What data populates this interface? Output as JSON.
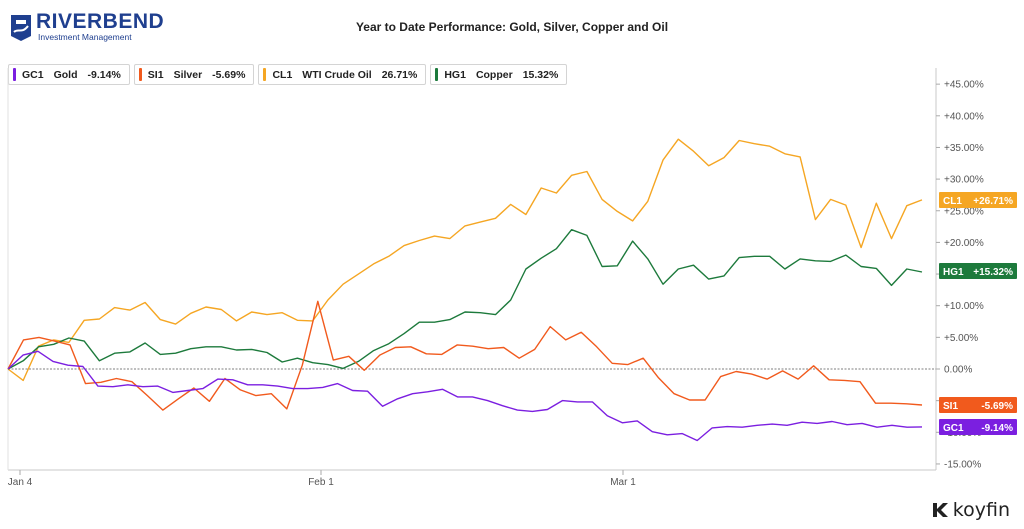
{
  "logo": {
    "word": "RIVERBEND",
    "sub": "Investment Management"
  },
  "brand": {
    "name": "koyfin"
  },
  "chart_data": {
    "type": "line",
    "title": "Year to Date Performance: Gold, Silver, Copper and Oil",
    "xlabel": "",
    "ylabel": "",
    "x_ticks": [
      "Jan 4",
      "Feb 1",
      "Mar 1"
    ],
    "ylim": [
      -15,
      47
    ],
    "y_ticks": [
      "+45.00%",
      "+40.00%",
      "+35.00%",
      "+30.00%",
      "+25.00%",
      "+20.00%",
      "+15.00%",
      "+10.00%",
      "+5.00%",
      "0.00%",
      "-5.00%",
      "-10.00%",
      "-15.00%"
    ],
    "y_tick_values": [
      45,
      40,
      35,
      30,
      25,
      20,
      15,
      10,
      5,
      0,
      -5,
      -10,
      -15
    ],
    "grid": false,
    "zero_line": true,
    "legend_position": "top-left",
    "series": [
      {
        "ticker": "GC1",
        "name": "Gold",
        "change": "-9.14%",
        "end_label": "-9.14%",
        "color": "#7b1fe0",
        "values": [
          0,
          2.2,
          2.8,
          1.2,
          0.6,
          0.4,
          -2.7,
          -2.8,
          -2.5,
          -2.8,
          -2.7,
          -3.7,
          -3.4,
          -3.1,
          -1.6,
          -1.7,
          -2.5,
          -2.5,
          -2.7,
          -3.1,
          -3.1,
          -2.9,
          -2.3,
          -3.4,
          -3.5,
          -5.9,
          -4.7,
          -3.9,
          -3.6,
          -3.2,
          -4.4,
          -4.4,
          -5.0,
          -5.8,
          -6.5,
          -6.7,
          -6.4,
          -5.0,
          -5.2,
          -5.2,
          -7.4,
          -8.5,
          -8.2,
          -9.9,
          -10.4,
          -10.2,
          -11.3,
          -9.3,
          -9.1,
          -9.2,
          -8.9,
          -8.7,
          -8.9,
          -8.4,
          -8.6,
          -8.3,
          -8.8,
          -8.6,
          -9.2,
          -8.9,
          -9.2,
          -9.14
        ]
      },
      {
        "ticker": "SI1",
        "name": "Silver",
        "change": "-5.69%",
        "end_label": "-5.69%",
        "color": "#f15a1d",
        "values": [
          0,
          4.6,
          5.0,
          4.4,
          3.8,
          -2.3,
          -2.1,
          -1.5,
          -2.0,
          -4.2,
          -6.5,
          -4.7,
          -3.0,
          -5.1,
          -1.5,
          -3.3,
          -4.2,
          -3.9,
          -6.3,
          0.6,
          10.7,
          1.4,
          2.0,
          -0.2,
          2.2,
          3.4,
          3.5,
          2.4,
          2.3,
          3.8,
          3.6,
          3.2,
          3.4,
          1.7,
          3.1,
          6.7,
          4.6,
          5.8,
          3.5,
          0.9,
          0.7,
          1.7,
          -1.4,
          -3.9,
          -4.9,
          -4.9,
          -1.2,
          -0.4,
          -0.8,
          -1.6,
          -0.3,
          -1.6,
          0.5,
          -1.7,
          -1.8,
          -2.0,
          -5.4,
          -5.4,
          -5.5,
          -5.69
        ]
      },
      {
        "ticker": "CL1",
        "name": "WTI Crude Oil",
        "change": "26.71%",
        "end_label": "+26.71%",
        "color": "#f5a623",
        "values": [
          0,
          -1.8,
          3.6,
          4.6,
          4.2,
          7.7,
          7.9,
          9.7,
          9.3,
          10.5,
          7.8,
          7.1,
          8.8,
          9.8,
          9.4,
          7.6,
          9.0,
          8.6,
          8.9,
          7.7,
          7.6,
          10.9,
          13.4,
          15.0,
          16.6,
          17.8,
          19.5,
          20.3,
          21.0,
          20.6,
          22.6,
          23.2,
          23.8,
          26.0,
          24.4,
          28.6,
          27.8,
          30.6,
          31.2,
          26.8,
          24.9,
          23.4,
          26.5,
          33.0,
          36.3,
          34.4,
          32.1,
          33.4,
          36.1,
          35.6,
          35.2,
          34.0,
          33.5,
          23.6,
          26.8,
          25.9,
          19.2,
          26.2,
          20.6,
          25.8,
          26.71
        ]
      },
      {
        "ticker": "HG1",
        "name": "Copper",
        "change": "15.32%",
        "end_label": "+15.32%",
        "color": "#1d7a3c",
        "values": [
          0,
          1.3,
          3.5,
          3.9,
          4.9,
          4.4,
          1.3,
          2.5,
          2.7,
          4.1,
          2.3,
          2.5,
          3.2,
          3.5,
          3.5,
          3.0,
          3.1,
          2.6,
          1.1,
          1.7,
          1.0,
          0.7,
          0.1,
          1.2,
          2.9,
          4.0,
          5.6,
          7.4,
          7.4,
          7.8,
          9.0,
          8.9,
          8.6,
          10.9,
          15.8,
          17.5,
          19.0,
          22.0,
          21.1,
          16.2,
          16.3,
          20.2,
          17.4,
          13.4,
          15.8,
          16.4,
          14.2,
          14.7,
          17.6,
          17.8,
          17.8,
          15.8,
          17.4,
          17.1,
          17.0,
          18.0,
          16.2,
          15.9,
          13.2,
          15.8,
          15.32
        ]
      }
    ]
  }
}
